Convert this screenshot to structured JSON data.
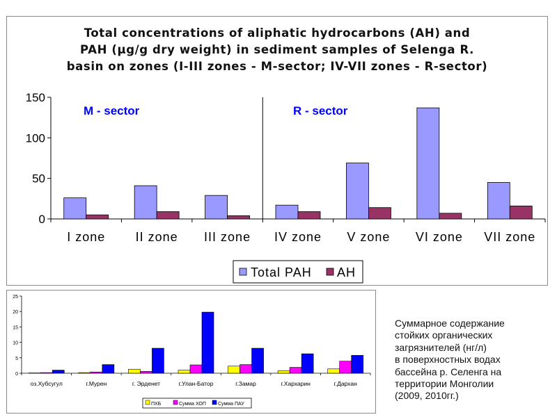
{
  "chart_data": [
    {
      "type": "bar",
      "title": "Total concentrations of aliphatic hydrocarbons (AH) and PAH (μg/g dry weight)  in sediment samples of Selenga R. basin on zones (I-III zones - M-sector; IV-VII zones - R-sector)",
      "title_lines": [
        "Total concentrations of aliphatic hydrocarbons (AH) and",
        "PAH (μg/g dry weight)  in sediment samples of Selenga R.",
        "basin on zones (I-III zones - M-sector; IV-VII zones - R-sector)"
      ],
      "categories": [
        "I zone",
        "II zone",
        "III zone",
        "IV zone",
        "V zone",
        "VI zone",
        "VII zone"
      ],
      "series": [
        {
          "name": "Total PAH",
          "color": "#9999ff",
          "values": [
            26,
            41,
            29,
            17,
            69,
            137,
            45
          ]
        },
        {
          "name": "AH",
          "color": "#993366",
          "values": [
            5,
            9,
            4,
            9,
            14,
            7,
            16
          ]
        }
      ],
      "ylim": [
        0,
        150
      ],
      "yticks": [
        0,
        50,
        100,
        150
      ],
      "annotations": [
        "M - sector",
        "R - sector"
      ],
      "annotation_color": "#0000ff",
      "divider_after_category": 3,
      "legend_position": "bottom",
      "grid": false
    },
    {
      "type": "bar",
      "categories": [
        "оз.Хубсугул",
        "г.Мурен",
        "г. Эрденет",
        "г.Улан-Батор",
        "г.Замар",
        "г.Хархарин",
        "г.Дархан"
      ],
      "series": [
        {
          "name": "ПХБ",
          "color": "#ffff00",
          "values": [
            0.1,
            0.2,
            1.3,
            1.0,
            2.3,
            0.8,
            1.4
          ]
        },
        {
          "name": "Сумма ХОП",
          "color": "#ff00ff",
          "values": [
            0.2,
            0.4,
            0.6,
            2.7,
            2.8,
            1.9,
            3.9
          ]
        },
        {
          "name": "Сумма ПАУ",
          "color": "#0000ff",
          "values": [
            1.0,
            2.8,
            8.1,
            19.8,
            8.1,
            6.3,
            5.8
          ]
        }
      ],
      "ylim": [
        0,
        25
      ],
      "yticks": [
        0,
        5,
        10,
        15,
        20,
        25
      ],
      "legend_position": "bottom",
      "grid": false
    }
  ],
  "caption_lines": [
    "Суммарное содержание",
    "стойких органических",
    "загрязнителей  (нг/л)",
    "в поверхностных  водах",
    "бассейна  р. Селенга на",
    "территории  Монголии",
    "(2009, 2010гг.)"
  ]
}
